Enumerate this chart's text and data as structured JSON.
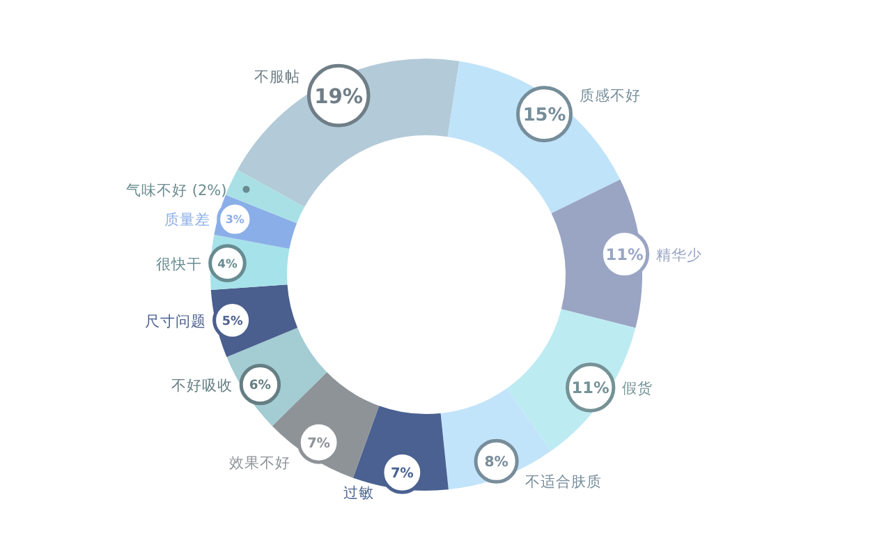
{
  "chart_data": {
    "type": "donut",
    "categories": [
      "不服帖",
      "质感不好",
      "精华少",
      "假货",
      "不适合肤质",
      "过敏",
      "效果不好",
      "不好吸收",
      "尺寸问题",
      "很快干",
      "质量差",
      "气味不好 (2%)"
    ],
    "values": [
      19,
      15,
      11,
      11,
      8,
      7,
      7,
      6,
      5,
      4,
      3,
      2
    ],
    "colors": [
      "#b3cad8",
      "#bfe3f9",
      "#9aa5c4",
      "#bdebf2",
      "#c2e4fa",
      "#4a6191",
      "#8e9398",
      "#a3ccd3",
      "#4a5f8e",
      "#a6e2ea",
      "#8aaee8",
      "#a9e0e6"
    ],
    "value_labels": [
      "19%",
      "15%",
      "11%",
      "11%",
      "8%",
      "7%",
      "7%",
      "6%",
      "5%",
      "4%",
      "3%",
      null
    ]
  }
}
